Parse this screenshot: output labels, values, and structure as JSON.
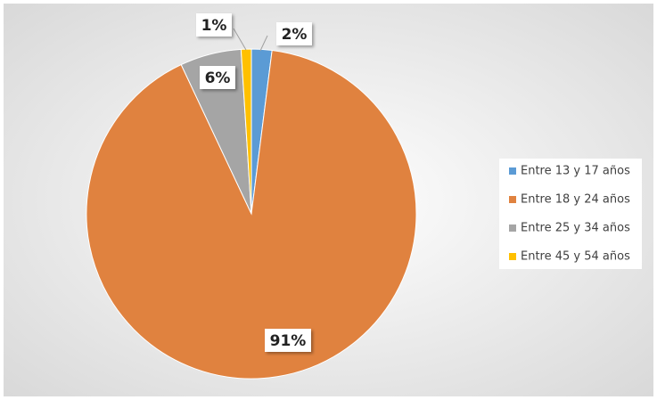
{
  "chart_data": {
    "type": "pie",
    "categories": [
      "Entre 13 y 17 años",
      "Entre 18 y 24 años",
      "Entre 25 y 34 años",
      "Entre 45 y 54 años"
    ],
    "values": [
      2,
      91,
      6,
      1
    ],
    "value_labels": [
      "2%",
      "91%",
      "6%",
      "1%"
    ],
    "colors": [
      "#5b9bd5",
      "#e0823f",
      "#a5a5a5",
      "#ffc000"
    ],
    "legend": "right"
  }
}
